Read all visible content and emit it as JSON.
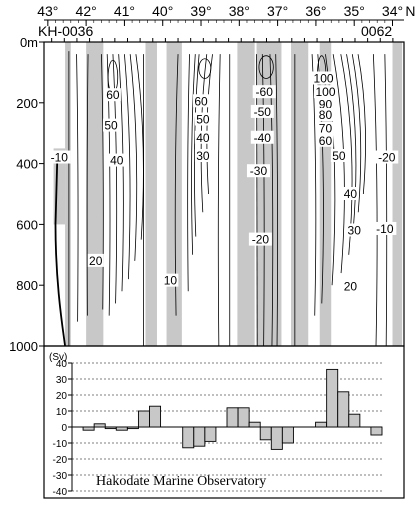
{
  "chart_data": [
    {
      "type": "heatmap",
      "title": "",
      "section_start": "KH-0036",
      "section_end": "0062",
      "x_label": "N",
      "x_ticks": [
        "43°",
        "42°",
        "41°",
        "40°",
        "39°",
        "38°",
        "37°",
        "36°",
        "35°",
        "34°"
      ],
      "x_range": [
        43.1,
        33.7
      ],
      "y_ticks": [
        "0m",
        "200",
        "400",
        "600",
        "800",
        "1000"
      ],
      "y_range": [
        0,
        1000
      ],
      "shaded_bands": [
        [
          42.55,
          42.4
        ],
        [
          42.0,
          41.55
        ],
        [
          40.45,
          40.15
        ],
        [
          39.9,
          39.5
        ],
        [
          38.05,
          37.6
        ],
        [
          37.55,
          36.9
        ],
        [
          36.65,
          36.2
        ],
        [
          35.9,
          35.6
        ],
        [
          34.0,
          33.75
        ]
      ],
      "shaded_left_patch": {
        "lat_range": [
          42.85,
          42.55
        ],
        "depth_range": [
          350,
          600
        ]
      },
      "contour_labels": [
        {
          "text": "-10",
          "lat": 42.7,
          "depth": 380
        },
        {
          "text": "20",
          "lat": 41.75,
          "depth": 720
        },
        {
          "text": "60",
          "lat": 41.3,
          "depth": 175
        },
        {
          "text": "50",
          "lat": 41.35,
          "depth": 275
        },
        {
          "text": "40",
          "lat": 41.2,
          "depth": 390
        },
        {
          "text": "10",
          "lat": 39.8,
          "depth": 785
        },
        {
          "text": "60",
          "lat": 39.0,
          "depth": 195
        },
        {
          "text": "50",
          "lat": 38.95,
          "depth": 255
        },
        {
          "text": "40",
          "lat": 38.95,
          "depth": 315
        },
        {
          "text": "30",
          "lat": 38.95,
          "depth": 375
        },
        {
          "text": "-60",
          "lat": 37.35,
          "depth": 165
        },
        {
          "text": "-50",
          "lat": 37.4,
          "depth": 230
        },
        {
          "text": "-40",
          "lat": 37.4,
          "depth": 315
        },
        {
          "text": "-30",
          "lat": 37.5,
          "depth": 425
        },
        {
          "text": "-20",
          "lat": 37.45,
          "depth": 650
        },
        {
          "text": "100",
          "lat": 35.8,
          "depth": 120
        },
        {
          "text": "100",
          "lat": 35.75,
          "depth": 165
        },
        {
          "text": "90",
          "lat": 35.75,
          "depth": 205
        },
        {
          "text": "80",
          "lat": 35.75,
          "depth": 240
        },
        {
          "text": "70",
          "lat": 35.75,
          "depth": 285
        },
        {
          "text": "60",
          "lat": 35.75,
          "depth": 325
        },
        {
          "text": "50",
          "lat": 35.4,
          "depth": 375
        },
        {
          "text": "40",
          "lat": 35.1,
          "depth": 500
        },
        {
          "text": "30",
          "lat": 35.0,
          "depth": 620
        },
        {
          "text": "20",
          "lat": 35.1,
          "depth": 805
        },
        {
          "text": "-20",
          "lat": 34.15,
          "depth": 380
        },
        {
          "text": "-10",
          "lat": 34.2,
          "depth": 615
        }
      ]
    },
    {
      "type": "bar",
      "title": "",
      "ylabel": "(Sv)",
      "ylim": [
        -40,
        40
      ],
      "y_ticks": [
        "40",
        "30",
        "20",
        "10",
        "0",
        "-10",
        "-20",
        "-30",
        "-40"
      ],
      "grid": true,
      "values": [
        0,
        -2,
        2,
        -1,
        -2,
        -1,
        10,
        13,
        0,
        0,
        -13,
        -12,
        -9,
        0,
        12,
        12,
        3,
        -8,
        -14,
        -10,
        0,
        0,
        3,
        36,
        22,
        8,
        0,
        -5
      ]
    }
  ],
  "footer": {
    "observatory": "Hakodate Marine Observatory"
  }
}
